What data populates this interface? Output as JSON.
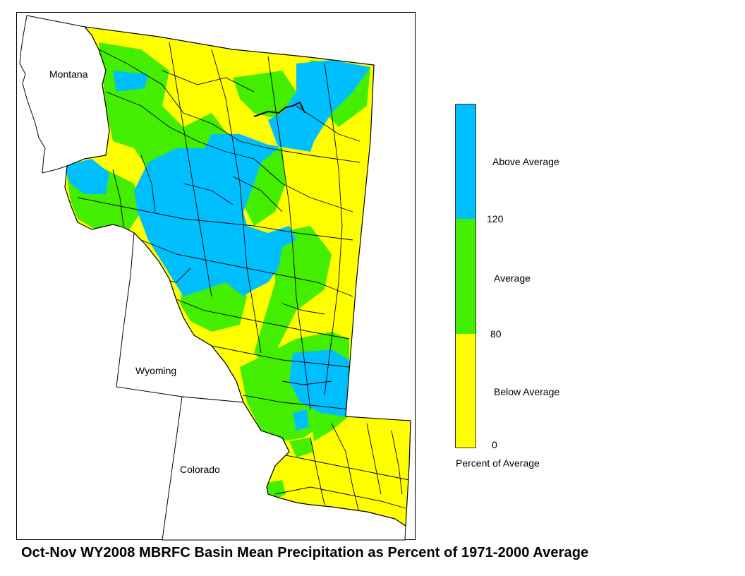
{
  "title": "Oct-Nov WY2008 MBRFC Basin Mean Precipitation as Percent of 1971-2000 Average",
  "state_labels": {
    "montana": "Montana",
    "wyoming": "Wyoming",
    "colorado": "Colorado"
  },
  "legend": {
    "caption": "Percent of Average",
    "categories": [
      {
        "label": "Above Average",
        "color": "#00bfff",
        "range": "> 120"
      },
      {
        "label": "Average",
        "color": "#44ee00",
        "range": "80 - 120"
      },
      {
        "label": "Below Average",
        "color": "#ffff00",
        "range": "0 - 80"
      }
    ],
    "ticks": [
      "120",
      "80",
      "0"
    ]
  },
  "colors": {
    "above": "#00bfff",
    "average": "#44ee00",
    "below": "#ffff00",
    "boundary": "#000000"
  }
}
